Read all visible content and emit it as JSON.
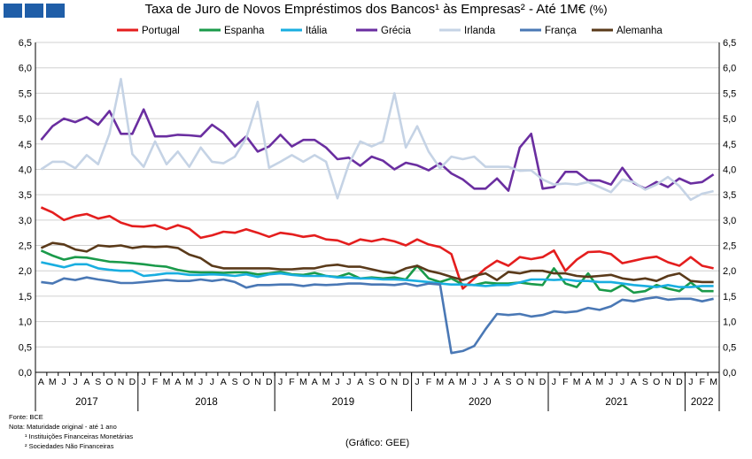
{
  "title": "Taxa de Juro de Novos Empréstimos dos Bancos¹ às Empresas² -  Até 1M€",
  "title_unit": "(%)",
  "footnotes": {
    "source": "Fonte: BCE",
    "note1": "Nota: Maturidade original - até 1 ano",
    "note2": "¹ Instituições Financeiras Monetárias",
    "note3": "² Sociedades Não Financeiras"
  },
  "credit": "(Gráfico: GEE)",
  "chart_data": {
    "type": "line",
    "title": "Taxa de Juro de Novos Empréstimos dos Bancos¹ às Empresas² -  Até 1M€ (%)",
    "xlabel": "",
    "ylabel": "",
    "ylim": [
      0,
      6.5
    ],
    "yticks": [
      "0,0",
      "0,5",
      "1,0",
      "1,5",
      "2,0",
      "2,5",
      "3,0",
      "3,5",
      "4,0",
      "4,5",
      "5,0",
      "5,5",
      "6,0",
      "6,5"
    ],
    "grid": "horizontal",
    "legend_position": "top",
    "month_labels": [
      "A",
      "M",
      "J",
      "J",
      "A",
      "S",
      "O",
      "N",
      "D",
      "J",
      "F",
      "M",
      "A",
      "M",
      "J",
      "J",
      "A",
      "S",
      "O",
      "N",
      "D",
      "J",
      "F",
      "M",
      "A",
      "M",
      "J",
      "J",
      "A",
      "S",
      "O",
      "N",
      "D",
      "J",
      "F",
      "M",
      "A",
      "M",
      "J",
      "J",
      "A",
      "S",
      "O",
      "N",
      "D",
      "J",
      "F",
      "M",
      "A",
      "M",
      "J",
      "J",
      "A",
      "S",
      "O",
      "N",
      "D",
      "J",
      "F",
      "M"
    ],
    "years": [
      {
        "label": "2017",
        "span": 9
      },
      {
        "label": "2018",
        "span": 12
      },
      {
        "label": "2019",
        "span": 12
      },
      {
        "label": "2020",
        "span": 12
      },
      {
        "label": "2021",
        "span": 12
      },
      {
        "label": "2022",
        "span": 3
      }
    ],
    "series": [
      {
        "name": "Portugal",
        "color": "#e41e1e",
        "values": [
          3.25,
          3.15,
          3.0,
          3.08,
          3.12,
          3.03,
          3.08,
          2.95,
          2.88,
          2.87,
          2.9,
          2.82,
          2.9,
          2.83,
          2.65,
          2.7,
          2.77,
          2.75,
          2.82,
          2.75,
          2.67,
          2.75,
          2.72,
          2.67,
          2.7,
          2.62,
          2.6,
          2.52,
          2.62,
          2.58,
          2.63,
          2.58,
          2.5,
          2.62,
          2.52,
          2.47,
          2.33,
          1.65,
          1.85,
          2.05,
          2.2,
          2.1,
          2.27,
          2.23,
          2.27,
          2.4,
          2.0,
          2.22,
          2.37,
          2.38,
          2.33,
          2.15,
          2.2,
          2.25,
          2.28,
          2.17,
          2.1,
          2.27,
          2.1,
          2.05
        ]
      },
      {
        "name": "Espanha",
        "color": "#1a9a4a",
        "values": [
          2.4,
          2.3,
          2.22,
          2.27,
          2.26,
          2.22,
          2.18,
          2.17,
          2.15,
          2.13,
          2.1,
          2.08,
          2.02,
          1.98,
          1.97,
          1.97,
          1.96,
          1.97,
          1.97,
          1.93,
          1.95,
          1.98,
          1.93,
          1.92,
          1.96,
          1.9,
          1.88,
          1.95,
          1.85,
          1.87,
          1.85,
          1.87,
          1.83,
          2.1,
          1.85,
          1.78,
          1.85,
          1.73,
          1.72,
          1.77,
          1.75,
          1.75,
          1.77,
          1.74,
          1.72,
          2.05,
          1.75,
          1.68,
          1.95,
          1.63,
          1.6,
          1.72,
          1.57,
          1.6,
          1.72,
          1.65,
          1.6,
          1.77,
          1.6,
          1.6
        ]
      },
      {
        "name": "Itália",
        "color": "#19aee0",
        "values": [
          2.17,
          2.12,
          2.07,
          2.13,
          2.13,
          2.05,
          2.02,
          2.0,
          2.0,
          1.9,
          1.92,
          1.95,
          1.95,
          1.92,
          1.92,
          1.93,
          1.92,
          1.9,
          1.93,
          1.88,
          1.93,
          1.95,
          1.92,
          1.9,
          1.9,
          1.9,
          1.87,
          1.87,
          1.85,
          1.85,
          1.83,
          1.83,
          1.82,
          1.8,
          1.78,
          1.75,
          1.73,
          1.73,
          1.72,
          1.7,
          1.72,
          1.72,
          1.77,
          1.83,
          1.83,
          1.82,
          1.83,
          1.8,
          1.8,
          1.78,
          1.78,
          1.75,
          1.72,
          1.7,
          1.68,
          1.72,
          1.68,
          1.68,
          1.7,
          1.7
        ]
      },
      {
        "name": "Grécia",
        "color": "#6a2ea0",
        "values": [
          4.58,
          4.85,
          5.0,
          4.93,
          5.03,
          4.88,
          5.15,
          4.7,
          4.7,
          5.18,
          4.65,
          4.65,
          4.68,
          4.67,
          4.65,
          4.88,
          4.72,
          4.45,
          4.65,
          4.35,
          4.45,
          4.68,
          4.45,
          4.58,
          4.58,
          4.43,
          4.2,
          4.23,
          4.07,
          4.25,
          4.17,
          4.0,
          4.13,
          4.08,
          3.98,
          4.12,
          3.92,
          3.8,
          3.62,
          3.62,
          3.82,
          3.58,
          4.43,
          4.7,
          3.62,
          3.65,
          3.95,
          3.95,
          3.78,
          3.78,
          3.7,
          4.03,
          3.73,
          3.62,
          3.75,
          3.65,
          3.82,
          3.72,
          3.75,
          3.9
        ]
      },
      {
        "name": "Irlanda",
        "color": "#c5d3e5",
        "values": [
          4.0,
          4.15,
          4.15,
          4.02,
          4.28,
          4.1,
          4.7,
          5.78,
          4.3,
          4.05,
          4.55,
          4.1,
          4.35,
          4.05,
          4.43,
          4.15,
          4.12,
          4.25,
          4.62,
          5.33,
          4.03,
          4.15,
          4.28,
          4.15,
          4.28,
          4.15,
          3.43,
          4.1,
          4.55,
          4.45,
          4.55,
          5.5,
          4.43,
          4.85,
          4.35,
          4.02,
          4.25,
          4.2,
          4.25,
          4.05,
          4.05,
          4.05,
          3.97,
          3.98,
          3.8,
          3.7,
          3.72,
          3.7,
          3.75,
          3.65,
          3.55,
          3.8,
          3.75,
          3.6,
          3.7,
          3.85,
          3.67,
          3.4,
          3.52,
          3.57
        ]
      },
      {
        "name": "França",
        "color": "#4a78b5",
        "values": [
          1.78,
          1.75,
          1.85,
          1.82,
          1.87,
          1.83,
          1.8,
          1.76,
          1.76,
          1.78,
          1.8,
          1.82,
          1.8,
          1.8,
          1.83,
          1.8,
          1.83,
          1.78,
          1.67,
          1.72,
          1.72,
          1.73,
          1.73,
          1.7,
          1.73,
          1.72,
          1.73,
          1.75,
          1.75,
          1.73,
          1.73,
          1.72,
          1.75,
          1.7,
          1.75,
          1.73,
          0.38,
          0.42,
          0.52,
          0.85,
          1.15,
          1.13,
          1.15,
          1.1,
          1.13,
          1.2,
          1.18,
          1.2,
          1.27,
          1.23,
          1.3,
          1.43,
          1.4,
          1.45,
          1.48,
          1.43,
          1.45,
          1.45,
          1.4,
          1.45
        ]
      },
      {
        "name": "Alemanha",
        "color": "#5a3a1a",
        "values": [
          2.45,
          2.55,
          2.52,
          2.42,
          2.38,
          2.5,
          2.48,
          2.5,
          2.45,
          2.48,
          2.47,
          2.48,
          2.45,
          2.32,
          2.25,
          2.1,
          2.05,
          2.05,
          2.05,
          2.05,
          2.05,
          2.03,
          2.03,
          2.05,
          2.05,
          2.1,
          2.12,
          2.08,
          2.08,
          2.03,
          1.98,
          1.95,
          2.05,
          2.1,
          2.0,
          1.95,
          1.88,
          1.82,
          1.9,
          1.95,
          1.82,
          1.98,
          1.95,
          2.0,
          2.0,
          1.95,
          1.95,
          1.9,
          1.88,
          1.9,
          1.92,
          1.85,
          1.82,
          1.85,
          1.8,
          1.9,
          1.95,
          1.8,
          1.78,
          1.78
        ]
      }
    ]
  }
}
